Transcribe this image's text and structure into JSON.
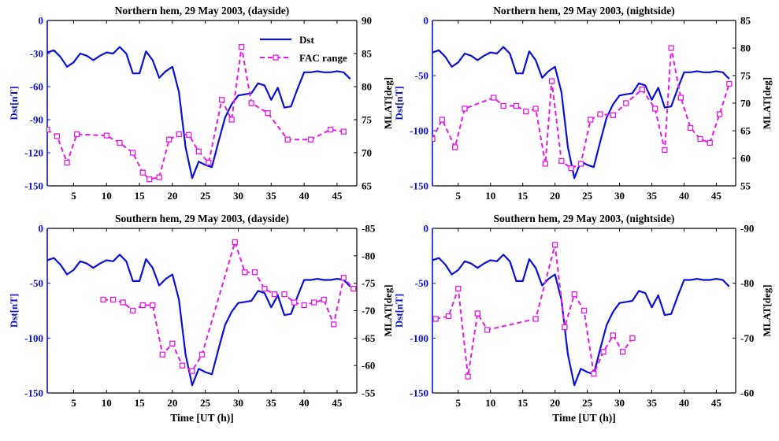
{
  "colors": {
    "dst": "#0a10d8",
    "fac": "#e619e6",
    "axis_left": "#0a10d8",
    "axis_right": "#000000"
  },
  "legend": {
    "dst_label": "Dst",
    "fac_label": "FAC range"
  },
  "dst_series": {
    "x": [
      1,
      2,
      3,
      4,
      5,
      6,
      7,
      8,
      9,
      10,
      11,
      12,
      13,
      14,
      15,
      16,
      17,
      18,
      19,
      20,
      21,
      22,
      23,
      24,
      25,
      26,
      27,
      28,
      29,
      30,
      31,
      32,
      33,
      34,
      35,
      36,
      37,
      38,
      39,
      40,
      41,
      42,
      43,
      44,
      45,
      46,
      47
    ],
    "y": [
      -29,
      -27,
      -33,
      -42,
      -38,
      -30,
      -32,
      -36,
      -32,
      -29,
      -30,
      -24,
      -30,
      -48,
      -48,
      -28,
      -36,
      -52,
      -46,
      -42,
      -65,
      -115,
      -143,
      -128,
      -131,
      -133,
      -110,
      -88,
      -76,
      -68,
      -67,
      -66,
      -57,
      -59,
      -72,
      -61,
      -79,
      -78,
      -62,
      -47,
      -47,
      -46,
      -47,
      -47,
      -46,
      -47,
      -53
    ]
  },
  "chart_data": [
    {
      "type": "line",
      "title": "Northern hem, 29 May 2003, (dayside)",
      "xlabel": "",
      "ylabel": "Dst[nT]",
      "ylabel_right": "MLAT[deg]",
      "xlim": [
        1,
        48
      ],
      "ylim": [
        -150,
        0
      ],
      "ylim_right": [
        65,
        90
      ],
      "x_ticks": [
        5,
        10,
        15,
        20,
        25,
        30,
        35,
        40,
        45
      ],
      "y_ticks": [
        0,
        -30,
        -60,
        -90,
        -120,
        -150
      ],
      "y_ticks_right": [
        65,
        70,
        75,
        80,
        85,
        90
      ],
      "legend_position": "top-right",
      "series": [
        {
          "name": "Dst",
          "axis": "left",
          "ref": "dst_series"
        },
        {
          "name": "FAC range",
          "axis": "right",
          "x": [
            1,
            2.5,
            4,
            5.5,
            10,
            12,
            14,
            15.5,
            16.5,
            18,
            19.5,
            21,
            22.5,
            24,
            25.5,
            27.5,
            29,
            30.5,
            32,
            34.5,
            37.5,
            41,
            44,
            46
          ],
          "y": [
            73.5,
            72.5,
            68.5,
            72.8,
            72.6,
            71.5,
            70,
            67,
            66,
            66.3,
            72,
            72.8,
            72.7,
            70.2,
            68.5,
            78,
            75,
            86,
            77.5,
            76,
            72,
            72,
            73.5,
            73.2
          ]
        }
      ]
    },
    {
      "type": "line",
      "title": "Northern hem, 29 May 2003, (nightside)",
      "xlabel": "",
      "ylabel": "Dst[nT]",
      "ylabel_right": "MLAT[deg]",
      "xlim": [
        1,
        48
      ],
      "ylim": [
        -150,
        0
      ],
      "ylim_right": [
        55,
        85
      ],
      "x_ticks": [
        5,
        10,
        15,
        20,
        25,
        30,
        35,
        40,
        45
      ],
      "y_ticks": [
        0,
        -50,
        -100,
        -150
      ],
      "y_ticks_right": [
        55,
        60,
        65,
        70,
        75,
        80,
        85
      ],
      "series": [
        {
          "name": "Dst",
          "axis": "left",
          "ref": "dst_series"
        },
        {
          "name": "FAC range",
          "axis": "right",
          "x": [
            1,
            2.5,
            4.5,
            6,
            10.5,
            12,
            14,
            15.5,
            17,
            18.5,
            19.5,
            21,
            22.5,
            24,
            25.5,
            27,
            29,
            31,
            33.5,
            35.5,
            37,
            38,
            39.5,
            41,
            42.5,
            44,
            45.5,
            47
          ],
          "y": [
            63.5,
            67,
            62,
            69,
            71,
            69.5,
            69.5,
            68.5,
            69,
            59,
            74,
            59.5,
            58.2,
            59,
            67,
            68,
            67.8,
            70,
            72.5,
            69,
            61.5,
            80,
            71,
            65.5,
            63.5,
            62.8,
            68,
            73.5
          ]
        }
      ]
    },
    {
      "type": "line",
      "title": "Southern hem, 29 May 2003, (dayside)",
      "xlabel": "Time [UT (h)]",
      "ylabel": "Dst[nT]",
      "ylabel_right": "MLAT[deg]",
      "xlim": [
        1,
        48
      ],
      "ylim": [
        -150,
        0
      ],
      "ylim_right": [
        -55,
        -85
      ],
      "x_ticks": [
        5,
        10,
        15,
        20,
        25,
        30,
        35,
        40,
        45
      ],
      "y_ticks": [
        0,
        -50,
        -100,
        -150
      ],
      "y_ticks_right": [
        -55,
        -60,
        -65,
        -70,
        -75,
        -80,
        -85
      ],
      "series": [
        {
          "name": "Dst",
          "axis": "left",
          "ref": "dst_series"
        },
        {
          "name": "FAC range",
          "axis": "right",
          "x": [
            9.5,
            11,
            12.5,
            14,
            15.5,
            17,
            18.5,
            20,
            21.5,
            23,
            24.5,
            29.5,
            31,
            32.5,
            34,
            35.5,
            37,
            38.5,
            40,
            41.5,
            43,
            44.5,
            46,
            47.5
          ],
          "y": [
            -72,
            -72,
            -71.5,
            -70,
            -71,
            -71,
            -62,
            -64,
            -60,
            -59,
            -62,
            -82.5,
            -77,
            -77,
            -74,
            -73,
            -73,
            -71.5,
            -71,
            -71.5,
            -72,
            -67.5,
            -76,
            -74
          ]
        }
      ]
    },
    {
      "type": "line",
      "title": "Southern hem, 29 May 2003, (nightside)",
      "xlabel": "Time [UT (h)]",
      "ylabel": "Dst[nT]",
      "ylabel_right": "MLAT[deg]",
      "xlim": [
        1,
        48
      ],
      "ylim": [
        -150,
        0
      ],
      "ylim_right": [
        -60,
        -90
      ],
      "x_ticks": [
        5,
        10,
        15,
        20,
        25,
        30,
        35,
        40,
        45
      ],
      "y_ticks": [
        0,
        -50,
        -100,
        -150
      ],
      "y_ticks_right": [
        -60,
        -70,
        -80,
        -90
      ],
      "series": [
        {
          "name": "Dst",
          "axis": "left",
          "ref": "dst_series"
        },
        {
          "name": "FAC range",
          "axis": "right",
          "x": [
            1.5,
            3.5,
            5,
            6.5,
            8,
            9.5,
            17,
            20,
            21.5,
            23,
            24.5,
            26,
            27.5,
            29,
            30.5,
            32
          ],
          "y": [
            -73.5,
            -74,
            -79,
            -63,
            -74.5,
            -71.5,
            -73.5,
            -87,
            -72,
            -78,
            -75,
            -63.5,
            -67.5,
            -70.5,
            -67.5,
            -70
          ]
        }
      ]
    }
  ]
}
